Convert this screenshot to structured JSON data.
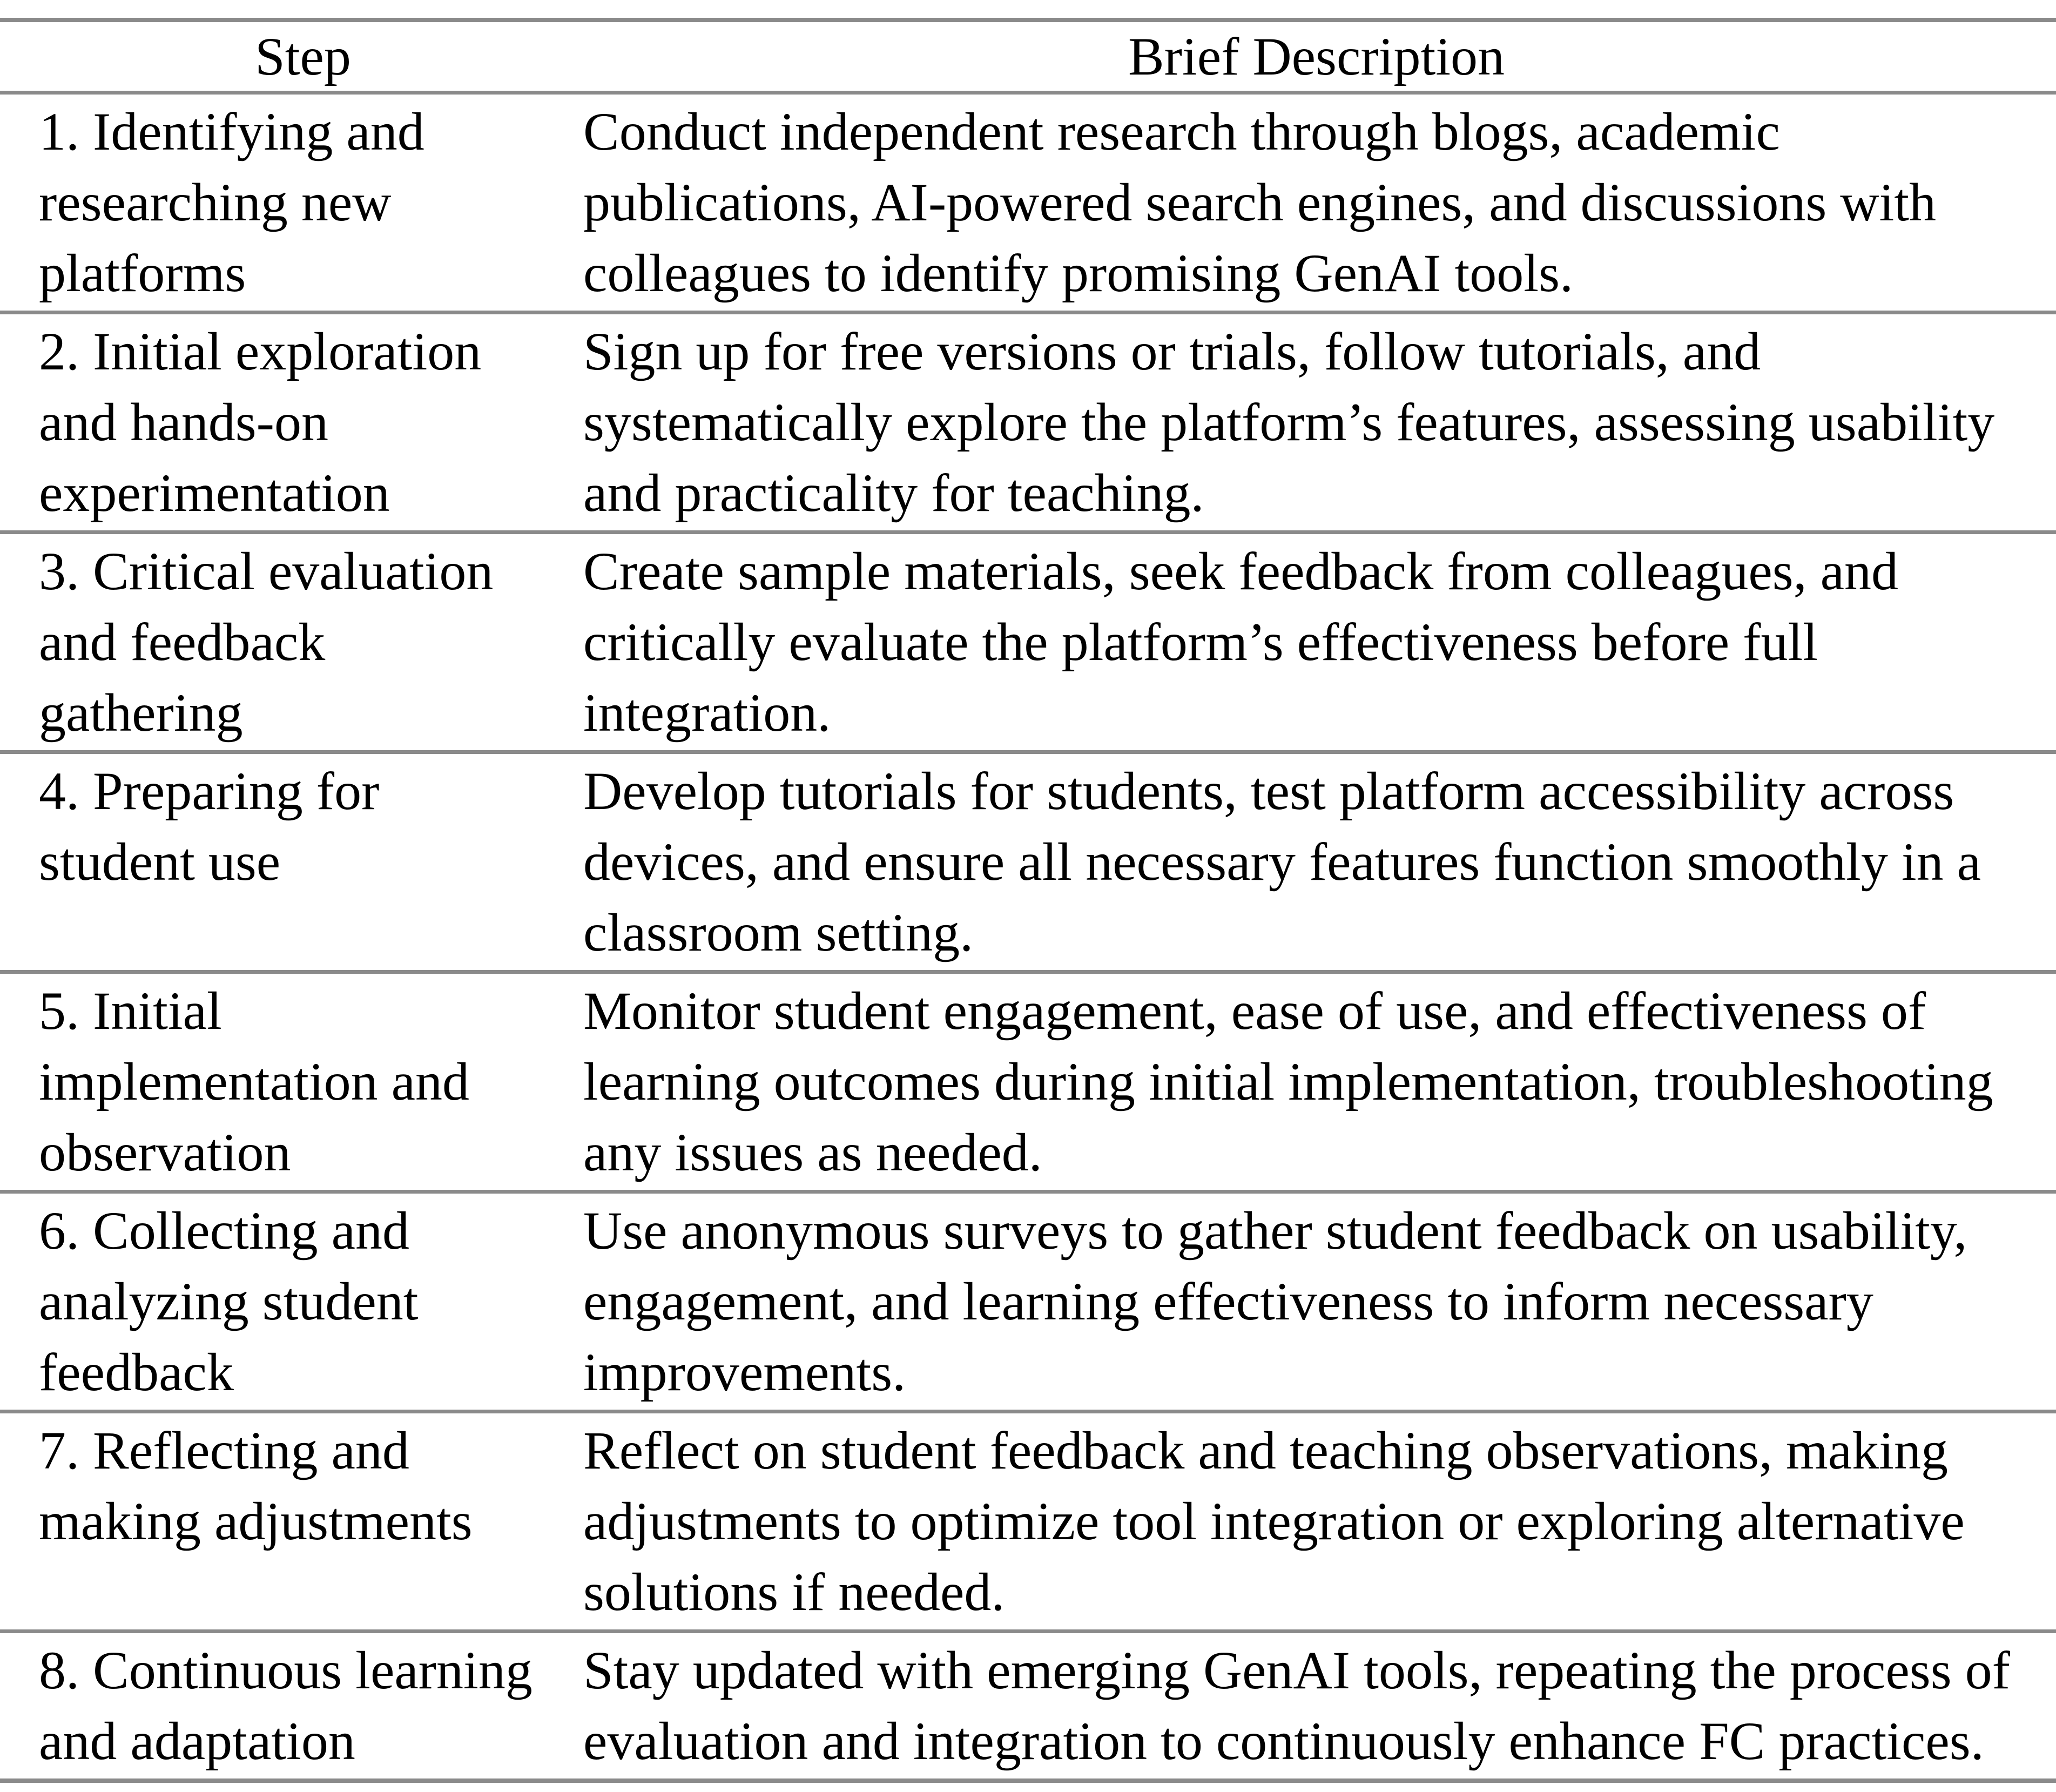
{
  "styles": {
    "grid_line_color": "#8a8a8a",
    "text_color": "#000000",
    "background_color": "#ffffff"
  },
  "table": {
    "headers": {
      "step": "Step",
      "description": "Brief Description"
    },
    "rows": [
      {
        "step": "1. Identifying and\nresearching new\nplatforms",
        "description": "Conduct independent research through blogs, academic\npublications, AI-powered search engines, and discussions with\ncolleagues to identify promising GenAI tools."
      },
      {
        "step": "2. Initial exploration\nand hands-on\nexperimentation",
        "description": "Sign up for free versions or trials, follow tutorials, and\nsystematically explore the platform’s features, assessing usability\nand practicality for teaching."
      },
      {
        "step": "3. Critical evaluation\nand feedback\ngathering",
        "description": "Create sample materials, seek feedback from colleagues, and\ncritically evaluate the platform’s effectiveness before full\nintegration."
      },
      {
        "step": "4. Preparing for\nstudent use",
        "description": "Develop tutorials for students, test platform accessibility across\ndevices, and ensure all necessary features function smoothly in a\nclassroom setting."
      },
      {
        "step": "5. Initial\nimplementation and\nobservation",
        "description": "Monitor student engagement, ease of use, and effectiveness of\nlearning outcomes during initial implementation, troubleshooting\nany issues as needed."
      },
      {
        "step": "6. Collecting and\nanalyzing student\nfeedback",
        "description": "Use anonymous surveys to gather student feedback on usability,\nengagement, and learning effectiveness to inform necessary\nimprovements."
      },
      {
        "step": "7. Reflecting and\nmaking adjustments",
        "description": "Reflect on student feedback and teaching observations, making\nadjustments to optimize tool integration or exploring alternative\nsolutions if needed."
      },
      {
        "step": "8. Continuous learning\nand adaptation",
        "description": "Stay updated with emerging GenAI tools, repeating the process of\nevaluation and integration to continuously enhance FC practices."
      }
    ]
  }
}
